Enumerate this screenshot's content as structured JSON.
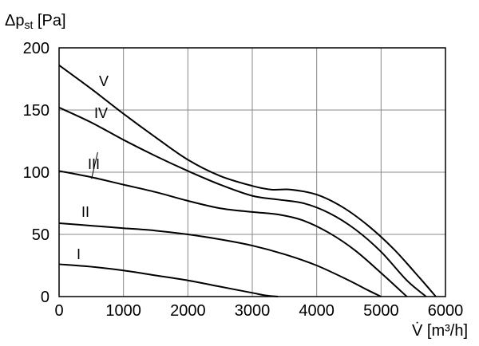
{
  "chart_data": {
    "type": "line",
    "title": "",
    "xlabel": "V̇ [m³/h]",
    "ylabel": "Δpst [Pa]",
    "ylabel_main": "Δp",
    "ylabel_sub": "st",
    "ylabel_unit": " [Pa]",
    "xlim": [
      0,
      6000
    ],
    "ylim": [
      0,
      200
    ],
    "x_ticks": [
      0,
      1000,
      2000,
      3000,
      4000,
      5000,
      6000
    ],
    "y_ticks": [
      0,
      50,
      100,
      150,
      200
    ],
    "x_tick_labels": [
      "0",
      "1000",
      "2000",
      "3000",
      "4000",
      "5000",
      "6000"
    ],
    "y_tick_labels": [
      "0",
      "50",
      "100",
      "150",
      "200"
    ],
    "grid": true,
    "legend": "inline",
    "series": [
      {
        "name": "I",
        "x": [
          0,
          500,
          1000,
          1500,
          2000,
          2500,
          3000,
          3200,
          3400
        ],
        "y": [
          26,
          24,
          21,
          17,
          13,
          8,
          3,
          1,
          0
        ]
      },
      {
        "name": "II",
        "x": [
          0,
          500,
          1000,
          1500,
          2000,
          2500,
          3000,
          3500,
          4000,
          4500,
          4800,
          5000
        ],
        "y": [
          59,
          57,
          55,
          53,
          50,
          46,
          41,
          34,
          25,
          13,
          5,
          0
        ]
      },
      {
        "name": "III",
        "x": [
          0,
          500,
          1000,
          1500,
          2000,
          2500,
          3000,
          3400,
          3800,
          4200,
          4600,
          5000,
          5400
        ],
        "y": [
          101,
          96,
          90,
          84,
          77,
          71,
          68,
          66,
          61,
          51,
          37,
          19,
          0
        ]
      },
      {
        "name": "IV",
        "x": [
          0,
          500,
          1000,
          1500,
          2000,
          2500,
          3000,
          3400,
          3800,
          4200,
          4600,
          5000,
          5400,
          5700
        ],
        "y": [
          152,
          140,
          126,
          113,
          101,
          90,
          81,
          78,
          75,
          67,
          54,
          36,
          13,
          0
        ]
      },
      {
        "name": "V",
        "x": [
          0,
          500,
          1000,
          1500,
          2000,
          2500,
          3000,
          3300,
          3600,
          4000,
          4400,
          4800,
          5200,
          5600,
          5850
        ],
        "y": [
          186,
          167,
          147,
          128,
          110,
          97,
          89,
          86,
          86,
          82,
          72,
          57,
          38,
          15,
          0
        ]
      }
    ]
  }
}
